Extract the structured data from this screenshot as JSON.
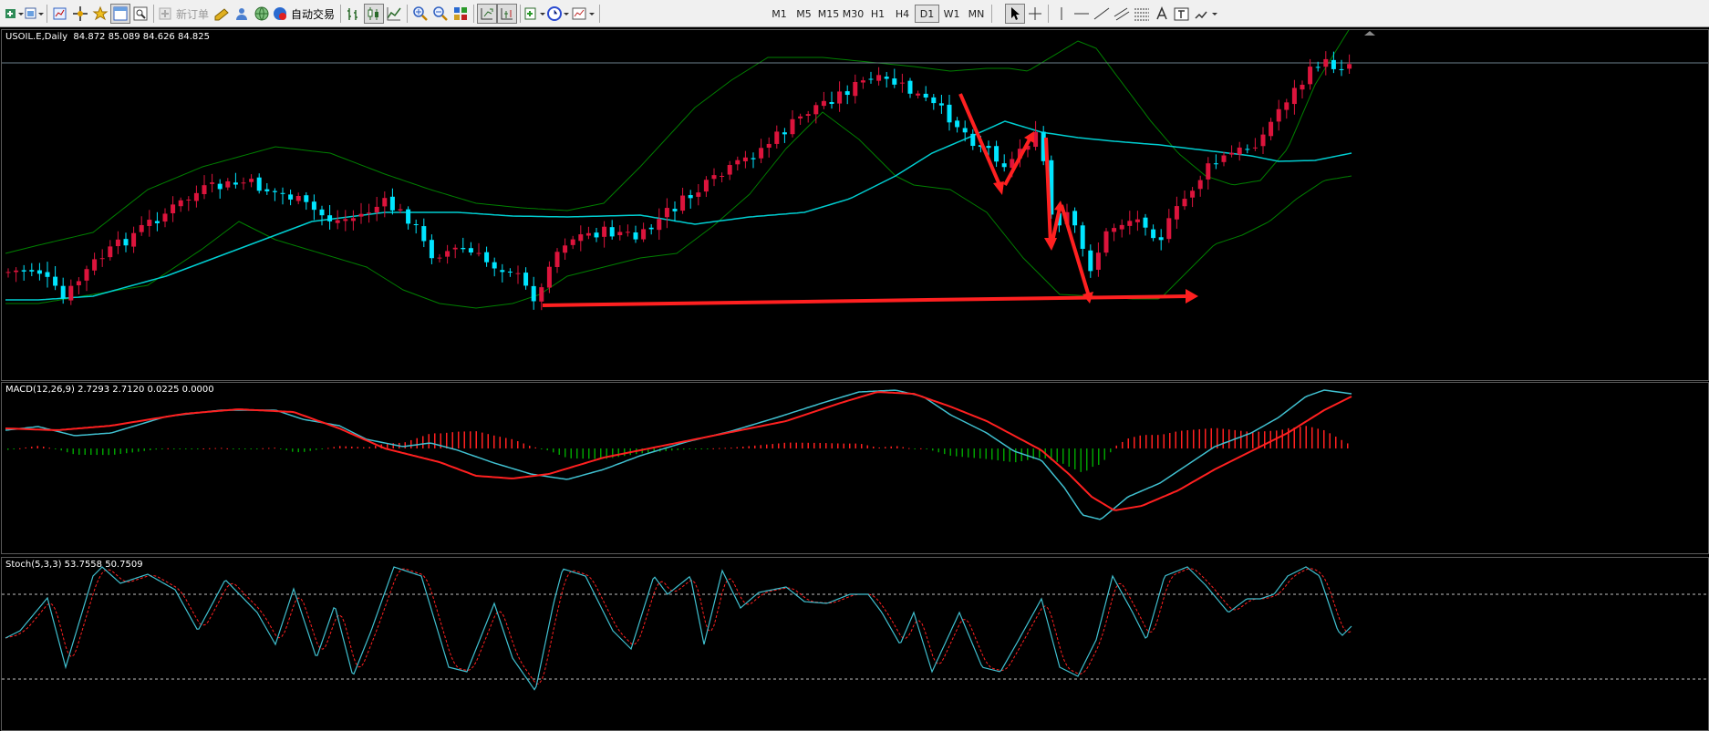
{
  "toolbar": {
    "new_order": "新订单",
    "auto_trade": "自动交易",
    "timeframes": [
      "M1",
      "M5",
      "M15",
      "M30",
      "H1",
      "H4",
      "D1",
      "W1",
      "MN"
    ],
    "active_timeframe": "D1",
    "icons": [
      "new-chart",
      "profiles",
      "market-watch",
      "navigator",
      "data-window",
      "terminal",
      "strategy-tester",
      "new-order",
      "metaeditor",
      "community",
      "auto-trading",
      "bar-chart",
      "candlestick-chart",
      "line-chart",
      "zoom-in",
      "zoom-out",
      "tile-windows",
      "autoscroll",
      "chart-shift",
      "indicators",
      "periods",
      "templates",
      "cursor",
      "crosshair",
      "vertical-line",
      "horizontal-line",
      "trendline",
      "fibonacci",
      "text-label",
      "text-label-box",
      "arrows"
    ]
  },
  "main_chart": {
    "symbol": "USOIL.E",
    "period": "Daily",
    "open": "84.872",
    "high": "85.089",
    "low": "84.626",
    "close": "84.825",
    "colors": {
      "bull": "#dc143c",
      "bear": "#00e5ff",
      "bands": "#008000",
      "ma": "#00ced1",
      "arrows": "#ff2020",
      "price_line": "#6b7f8c"
    }
  },
  "macd": {
    "label": "MACD(12,26,9)",
    "values": "2.7293 2.7120 0.0225 0.0000",
    "colors": {
      "main": "#40c0d0",
      "signal": "#ff2020",
      "hist_pos": "#ff2020",
      "hist_neg": "#00a000"
    }
  },
  "stoch": {
    "label": "Stoch(5,3,3)",
    "values": "53.7558 50.7509",
    "colors": {
      "main": "#40c0d0",
      "signal": "#ff2020",
      "levels": "#c0c0c0"
    }
  }
}
